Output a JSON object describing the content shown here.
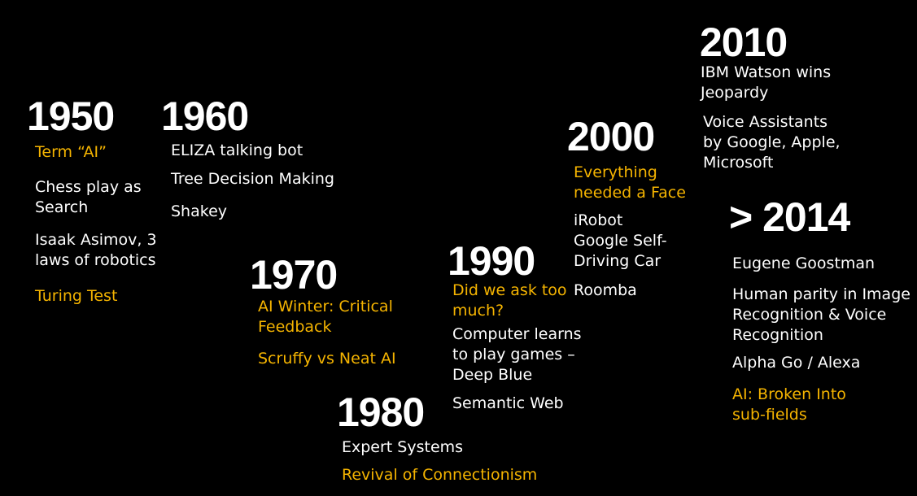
{
  "colors": {
    "background": "#000000",
    "text": "#ffffff",
    "highlight": "#f5b400"
  },
  "eras": {
    "e1950": {
      "year": "1950",
      "items": [
        {
          "lines": [
            "Term “AI”"
          ],
          "highlight": true
        },
        {
          "lines": [
            "Chess play as",
            "Search"
          ],
          "highlight": false
        },
        {
          "lines": [
            "Isaak Asimov, 3",
            "laws of robotics"
          ],
          "highlight": false
        },
        {
          "lines": [
            "Turing Test"
          ],
          "highlight": true
        }
      ]
    },
    "e1960": {
      "year": "1960",
      "items": [
        {
          "lines": [
            "ELIZA talking bot"
          ],
          "highlight": false
        },
        {
          "lines": [
            "Tree Decision Making"
          ],
          "highlight": false
        },
        {
          "lines": [
            "Shakey"
          ],
          "highlight": false
        }
      ]
    },
    "e1970": {
      "year": "1970",
      "items": [
        {
          "lines": [
            "AI Winter: Critical",
            "Feedback"
          ],
          "highlight": true
        },
        {
          "lines": [
            "Scruffy vs Neat AI"
          ],
          "highlight": true
        }
      ]
    },
    "e1980": {
      "year": "1980",
      "items": [
        {
          "lines": [
            "Expert Systems"
          ],
          "highlight": false
        },
        {
          "lines": [
            "Revival of Connectionism"
          ],
          "highlight": true
        }
      ]
    },
    "e1990": {
      "year": "1990",
      "items": [
        {
          "lines": [
            "Did we ask too",
            "much?"
          ],
          "highlight": true
        },
        {
          "lines": [
            "Computer learns",
            "to play games –",
            "Deep Blue"
          ],
          "highlight": false
        },
        {
          "lines": [
            "Semantic Web"
          ],
          "highlight": false
        }
      ]
    },
    "e2000": {
      "year": "2000",
      "items": [
        {
          "lines": [
            "Everything",
            "needed a Face"
          ],
          "highlight": true
        },
        {
          "lines": [
            "iRobot",
            "Google Self-",
            "Driving Car"
          ],
          "highlight": false
        },
        {
          "lines": [
            "Roomba"
          ],
          "highlight": false
        }
      ]
    },
    "e2010": {
      "year": "2010",
      "items": [
        {
          "lines": [
            "IBM Watson wins",
            "Jeopardy"
          ],
          "highlight": false
        },
        {
          "lines": [
            "Voice Assistants",
            "by Google, Apple,",
            "Microsoft"
          ],
          "highlight": false
        }
      ]
    },
    "e2014": {
      "year": "> 2014",
      "items": [
        {
          "lines": [
            "Eugene Goostman"
          ],
          "highlight": false
        },
        {
          "lines": [
            "Human parity in Image",
            "Recognition & Voice",
            "Recognition"
          ],
          "highlight": false
        },
        {
          "lines": [
            "Alpha Go / Alexa"
          ],
          "highlight": false
        },
        {
          "lines": [
            "AI: Broken Into",
            "sub-fields"
          ],
          "highlight": true
        }
      ]
    }
  }
}
